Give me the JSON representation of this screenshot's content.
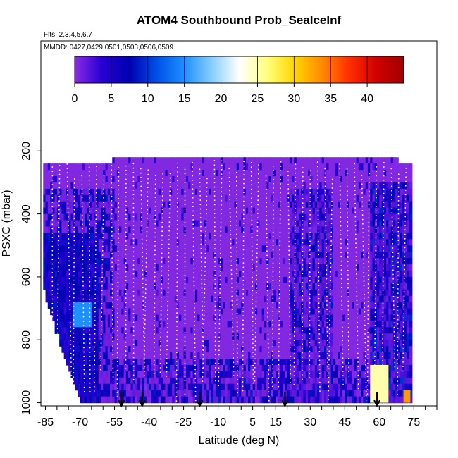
{
  "chart_data": {
    "type": "heatmap",
    "title": "ATOM4 Southbound Prob_SeaIceInf",
    "subtitle_flights": "Flts: 2,3,4,5,6,7",
    "subtitle_dates": "MMDD: 0427,0429,0501,0503,0506,0509",
    "xlabel": "Latitude (deg N)",
    "ylabel": "PSXC (mbar)",
    "x_ticks": [
      "-85",
      "-70",
      "-55",
      "-40",
      "-25",
      "-10",
      "5",
      "15",
      "30",
      "45",
      "60",
      "75"
    ],
    "x_tick_values": [
      -85,
      -70,
      -55,
      -40,
      -25,
      -10,
      5,
      15,
      30,
      45,
      60,
      75
    ],
    "xlim": [
      -87,
      85
    ],
    "y_ticks": [
      "200",
      "400",
      "600",
      "800",
      "1000"
    ],
    "y_tick_values": [
      200,
      400,
      600,
      800,
      1000
    ],
    "ylim": [
      1010,
      -150
    ],
    "colorbar": {
      "range": [
        0,
        45
      ],
      "tick_labels": [
        "0",
        "5",
        "10",
        "15",
        "20",
        "25",
        "30",
        "35",
        "40"
      ],
      "tick_values": [
        0,
        5,
        10,
        15,
        20,
        25,
        30,
        35,
        40
      ],
      "colors": [
        "#8a2be2",
        "#2600d4",
        "#0000b0",
        "#0050e8",
        "#1e90ff",
        "#87ceff",
        "#ffffff",
        "#ffff80",
        "#ffd700",
        "#ff8c00",
        "#ff3000",
        "#d00000",
        "#a00000"
      ]
    },
    "descent_arrow_latitudes": [
      -52,
      -43,
      -18,
      19,
      59
    ],
    "profile_coverage": {
      "description": "Vertical profiles of probability of sea ice influence vs latitude and pressure",
      "background_value": 0,
      "high_value_regions": [
        {
          "lat": -69,
          "p_top": 680,
          "p_bottom": 760,
          "value": 15
        },
        {
          "lat": 60,
          "p_top": 880,
          "p_bottom": 1000,
          "value": 25
        },
        {
          "lat": 72,
          "p_top": 960,
          "p_bottom": 1000,
          "value": 33
        }
      ]
    }
  }
}
